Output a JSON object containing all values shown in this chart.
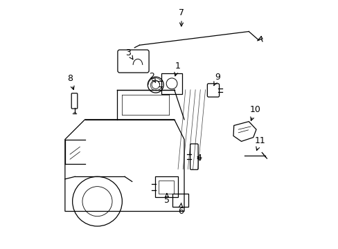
{
  "bg_color": "#ffffff",
  "line_color": "#000000",
  "figsize": [
    4.89,
    3.6
  ],
  "dpi": 100,
  "labels": {
    "1": [
      0.535,
      0.735,
      0.52,
      0.685
    ],
    "2": [
      0.43,
      0.695,
      0.445,
      0.668
    ],
    "3": [
      0.335,
      0.79,
      0.355,
      0.76
    ],
    "4": [
      0.62,
      0.365,
      0.605,
      0.375
    ],
    "5": [
      0.49,
      0.195,
      0.49,
      0.225
    ],
    "6": [
      0.545,
      0.15,
      0.548,
      0.185
    ],
    "7": [
      0.55,
      0.95,
      0.548,
      0.885
    ],
    "8": [
      0.1,
      0.685,
      0.118,
      0.63
    ],
    "9": [
      0.695,
      0.69,
      0.675,
      0.648
    ],
    "10": [
      0.845,
      0.56,
      0.825,
      0.505
    ],
    "11": [
      0.865,
      0.435,
      0.848,
      0.385
    ]
  }
}
